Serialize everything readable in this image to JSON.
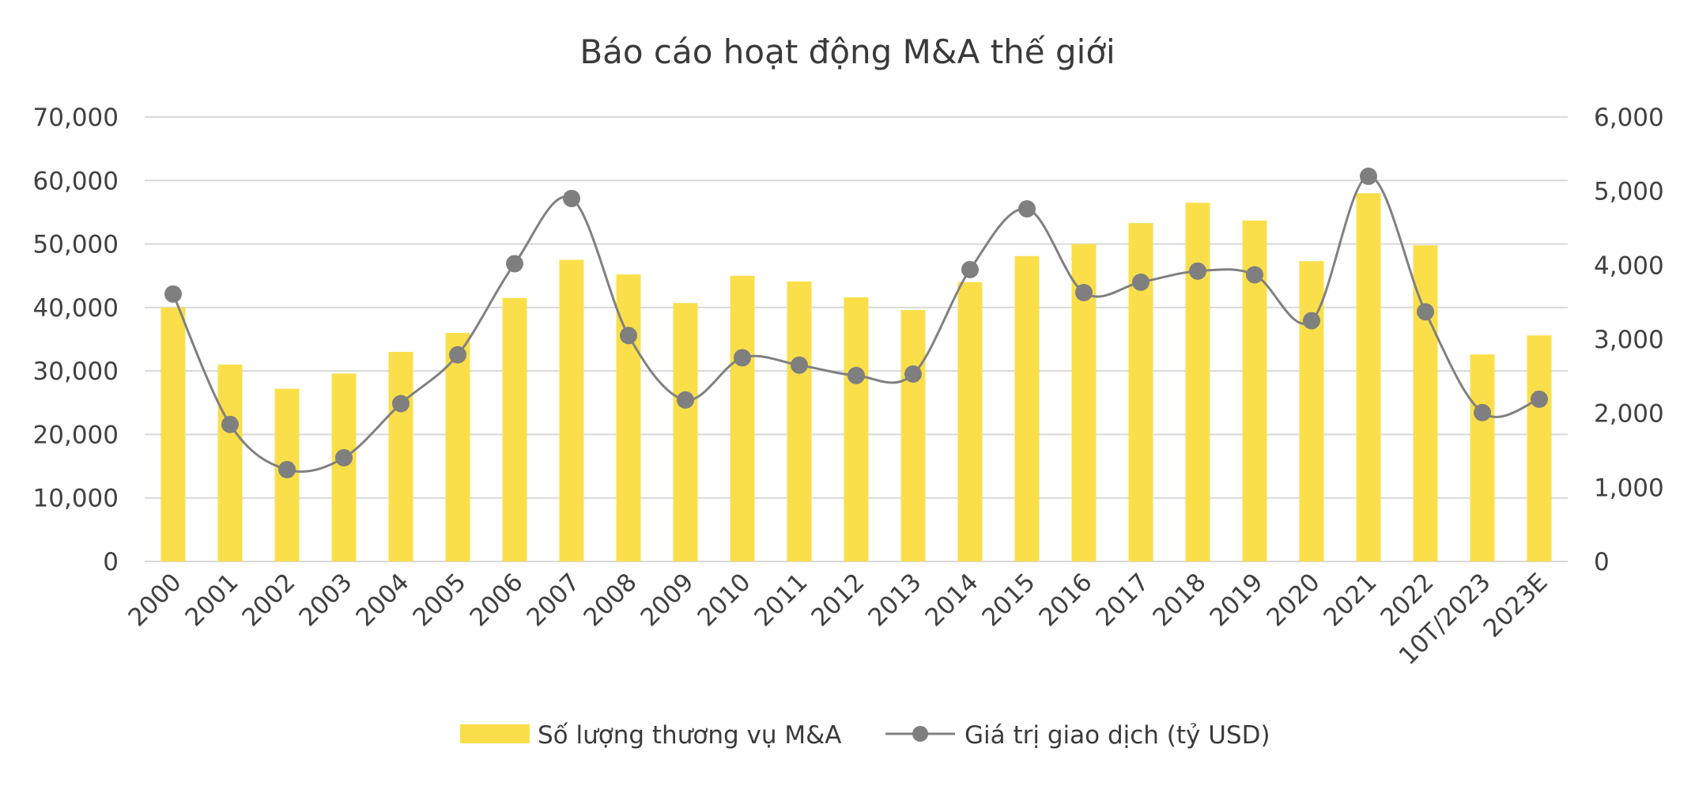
{
  "chart_data": {
    "type": "bar",
    "title": "Báo cáo hoạt động M&A thế giới",
    "categories": [
      "2000",
      "2001",
      "2002",
      "2003",
      "2004",
      "2005",
      "2006",
      "2007",
      "2008",
      "2009",
      "2010",
      "2011",
      "2012",
      "2013",
      "2014",
      "2015",
      "2016",
      "2017",
      "2018",
      "2019",
      "2020",
      "2021",
      "2022",
      "10T/2023",
      "2023E"
    ],
    "series": [
      {
        "name": "Số lượng thương vụ M&A",
        "type": "bar",
        "axis": "left",
        "values": [
          40000,
          31000,
          27200,
          29600,
          33000,
          36000,
          41500,
          47500,
          45200,
          40700,
          45000,
          44100,
          41600,
          39600,
          44000,
          48100,
          50000,
          53300,
          56500,
          53700,
          47300,
          58000,
          49800,
          32600,
          35600
        ]
      },
      {
        "name": "Giá trị giao dịch (tỷ USD)",
        "type": "line",
        "axis": "right",
        "values": [
          3610,
          1850,
          1240,
          1400,
          2130,
          2790,
          4020,
          4900,
          3050,
          2180,
          2750,
          2650,
          2510,
          2530,
          3940,
          4760,
          3630,
          3770,
          3920,
          3870,
          3250,
          5200,
          3370,
          2010,
          2190
        ]
      }
    ],
    "y_left": {
      "min": 0,
      "max": 70000,
      "ticks": [
        "0",
        "10,000",
        "20,000",
        "30,000",
        "40,000",
        "50,000",
        "60,000",
        "70,000"
      ]
    },
    "y_right": {
      "min": 0,
      "max": 6000,
      "ticks": [
        "0",
        "1,000",
        "2,000",
        "3,000",
        "4,000",
        "5,000",
        "6,000"
      ]
    },
    "grid": true,
    "legend": "bottom",
    "colors": {
      "bar": "#FADF4B",
      "line": "#808080",
      "marker": "#7F7F7F",
      "grid": "#D9D9D9",
      "text": "#404040"
    }
  }
}
